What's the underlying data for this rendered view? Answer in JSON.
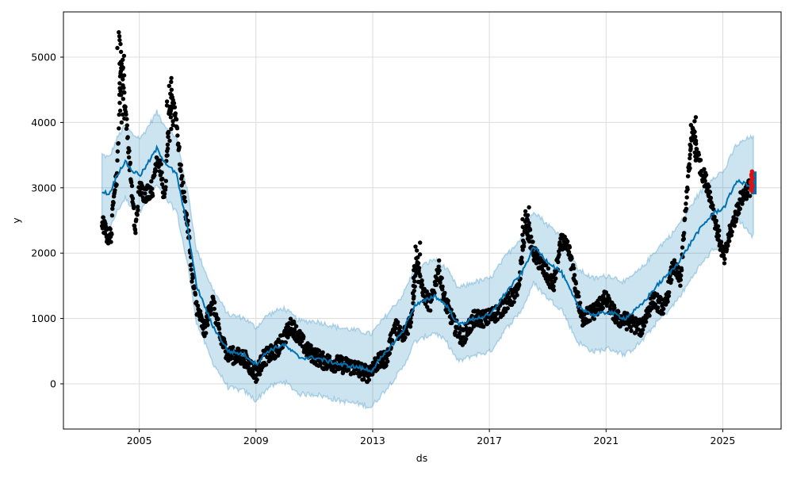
{
  "chart_data": {
    "type": "scatter",
    "title": "",
    "xlabel": "ds",
    "ylabel": "y",
    "xlim": [
      2002.4,
      2027.0
    ],
    "ylim": [
      -692,
      5692
    ],
    "grid": true,
    "x_ticks": [
      2005,
      2009,
      2013,
      2017,
      2021,
      2025
    ],
    "x_tick_labels": [
      "2005",
      "2009",
      "2013",
      "2017",
      "2021",
      "2025"
    ],
    "y_ticks": [
      0,
      1000,
      2000,
      3000,
      4000,
      5000
    ],
    "y_tick_labels": [
      "0",
      "1000",
      "2000",
      "3000",
      "4000",
      "5000"
    ],
    "colors": {
      "observed": "#000000",
      "forecast_line": "#0072B2",
      "interval": "#0072B2",
      "recent": "#e01010"
    },
    "observed": [
      [
        2003.72,
        2500
      ],
      [
        2003.91,
        2250
      ],
      [
        2004.05,
        2300
      ],
      [
        2004.13,
        3000
      ],
      [
        2004.24,
        3200
      ],
      [
        2004.37,
        5000
      ],
      [
        2004.51,
        4300
      ],
      [
        2004.65,
        3500
      ],
      [
        2004.86,
        2300
      ],
      [
        2005.0,
        3000
      ],
      [
        2005.19,
        2900
      ],
      [
        2005.46,
        3000
      ],
      [
        2005.6,
        3500
      ],
      [
        2005.73,
        3300
      ],
      [
        2005.87,
        2800
      ],
      [
        2006.01,
        4000
      ],
      [
        2006.14,
        4400
      ],
      [
        2006.28,
        4000
      ],
      [
        2006.41,
        3300
      ],
      [
        2006.69,
        2300
      ],
      [
        2006.82,
        1600
      ],
      [
        2006.96,
        1200
      ],
      [
        2007.23,
        800
      ],
      [
        2007.5,
        1300
      ],
      [
        2007.78,
        700
      ],
      [
        2008.05,
        450
      ],
      [
        2008.59,
        400
      ],
      [
        2009.0,
        150
      ],
      [
        2009.27,
        400
      ],
      [
        2009.68,
        500
      ],
      [
        2010.22,
        900
      ],
      [
        2010.77,
        500
      ],
      [
        2011.31,
        350
      ],
      [
        2011.86,
        300
      ],
      [
        2012.4,
        250
      ],
      [
        2012.81,
        150
      ],
      [
        2013.08,
        300
      ],
      [
        2013.49,
        400
      ],
      [
        2013.76,
        900
      ],
      [
        2014.03,
        700
      ],
      [
        2014.31,
        1000
      ],
      [
        2014.52,
        1900
      ],
      [
        2014.71,
        1400
      ],
      [
        2014.99,
        1200
      ],
      [
        2015.26,
        1800
      ],
      [
        2015.45,
        1300
      ],
      [
        2015.8,
        900
      ],
      [
        2016.07,
        700
      ],
      [
        2016.48,
        1000
      ],
      [
        2016.89,
        1000
      ],
      [
        2017.3,
        1100
      ],
      [
        2017.71,
        1300
      ],
      [
        2017.98,
        1400
      ],
      [
        2018.25,
        2500
      ],
      [
        2018.52,
        2000
      ],
      [
        2018.8,
        1800
      ],
      [
        2019.2,
        1500
      ],
      [
        2019.48,
        2200
      ],
      [
        2019.75,
        2000
      ],
      [
        2020.16,
        1000
      ],
      [
        2020.56,
        1100
      ],
      [
        2020.97,
        1300
      ],
      [
        2021.38,
        1000
      ],
      [
        2021.79,
        950
      ],
      [
        2022.2,
        850
      ],
      [
        2022.61,
        1300
      ],
      [
        2023.01,
        1150
      ],
      [
        2023.29,
        1800
      ],
      [
        2023.56,
        1600
      ],
      [
        2023.78,
        3000
      ],
      [
        2023.97,
        3900
      ],
      [
        2024.24,
        3300
      ],
      [
        2024.51,
        3000
      ],
      [
        2024.78,
        2400
      ],
      [
        2025.05,
        1900
      ],
      [
        2025.24,
        2300
      ],
      [
        2025.6,
        2800
      ],
      [
        2025.87,
        3000
      ],
      [
        2026.01,
        3000
      ]
    ],
    "spikes": [
      [
        2004.37,
        4000,
        5400
      ],
      [
        2006.05,
        3600,
        4700
      ],
      [
        2023.97,
        3300,
        4100
      ],
      [
        2018.25,
        2100,
        2700
      ],
      [
        2014.52,
        1500,
        2200
      ]
    ],
    "yhat": [
      [
        2003.72,
        2950
      ],
      [
        2003.97,
        2900
      ],
      [
        2004.24,
        3200
      ],
      [
        2004.51,
        3400
      ],
      [
        2004.78,
        3250
      ],
      [
        2005.05,
        3200
      ],
      [
        2005.33,
        3400
      ],
      [
        2005.6,
        3600
      ],
      [
        2005.87,
        3400
      ],
      [
        2006.28,
        3200
      ],
      [
        2006.69,
        2300
      ],
      [
        2006.96,
        1500
      ],
      [
        2007.5,
        900
      ],
      [
        2008.05,
        500
      ],
      [
        2008.59,
        450
      ],
      [
        2009.0,
        300
      ],
      [
        2009.41,
        500
      ],
      [
        2009.95,
        600
      ],
      [
        2010.5,
        400
      ],
      [
        2011.04,
        400
      ],
      [
        2011.86,
        300
      ],
      [
        2012.54,
        250
      ],
      [
        2012.95,
        200
      ],
      [
        2013.49,
        500
      ],
      [
        2014.03,
        800
      ],
      [
        2014.44,
        1200
      ],
      [
        2014.71,
        1250
      ],
      [
        2015.12,
        1350
      ],
      [
        2015.53,
        1200
      ],
      [
        2015.93,
        900
      ],
      [
        2016.48,
        1000
      ],
      [
        2017.03,
        1050
      ],
      [
        2017.57,
        1400
      ],
      [
        2018.12,
        1700
      ],
      [
        2018.52,
        2100
      ],
      [
        2018.93,
        1900
      ],
      [
        2019.48,
        1700
      ],
      [
        2020.02,
        1200
      ],
      [
        2020.56,
        1050
      ],
      [
        2021.11,
        1100
      ],
      [
        2021.65,
        1000
      ],
      [
        2022.2,
        1200
      ],
      [
        2022.74,
        1500
      ],
      [
        2023.29,
        1750
      ],
      [
        2023.69,
        2000
      ],
      [
        2024.1,
        2300
      ],
      [
        2024.65,
        2600
      ],
      [
        2025.05,
        2700
      ],
      [
        2025.46,
        3100
      ],
      [
        2025.87,
        3050
      ],
      [
        2026.01,
        3000
      ]
    ],
    "interval_halfwidth": 560,
    "forecast_end": {
      "x": 2026.05,
      "yhat_range": [
        2900,
        3250
      ],
      "interval": [
        2300,
        3800
      ]
    },
    "recent_points": {
      "x": 2025.98,
      "range": [
        2950,
        3250
      ]
    }
  }
}
